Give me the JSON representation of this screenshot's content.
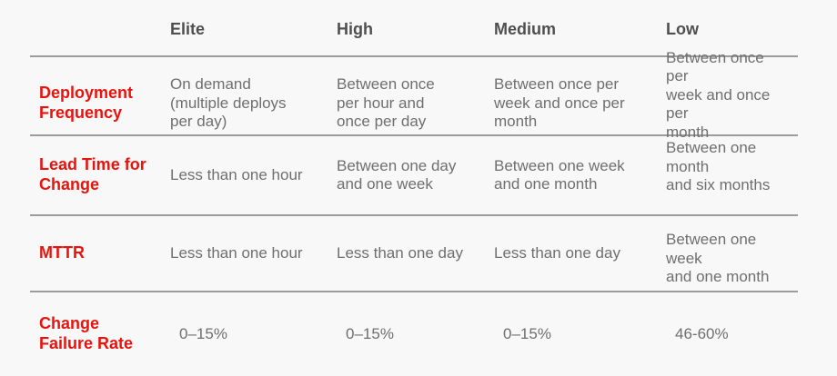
{
  "table": {
    "columns": [
      "",
      "Elite",
      "High",
      "Medium",
      "Low"
    ],
    "rows": [
      {
        "label": "Deployment\nFrequency",
        "cells": [
          "On demand\n(multiple deploys\nper day)",
          "Between once\nper hour and\nonce per day",
          "Between once per\nweek and once per\nmonth",
          "Between once per\nweek and once per\nmonth"
        ]
      },
      {
        "label": "Lead Time for\nChange",
        "cells": [
          "Less than one hour",
          "Between one day\nand one week",
          "Between one week\nand one month",
          "Between one month\nand six months"
        ]
      },
      {
        "label": "MTTR",
        "cells": [
          "Less than one hour",
          "Less than one day",
          "Less than one day",
          "Between one week\nand one month"
        ]
      },
      {
        "label": "Change\nFailure Rate",
        "cells": [
          "0–15%",
          "0–15%",
          "0–15%",
          "46-60%"
        ]
      }
    ]
  },
  "colors": {
    "accent_red": "#e9130d",
    "header_text": "#4f4f4f",
    "body_text": "#6f6f6f",
    "divider": "#9c9c9c",
    "background": "#f8f8f8"
  }
}
